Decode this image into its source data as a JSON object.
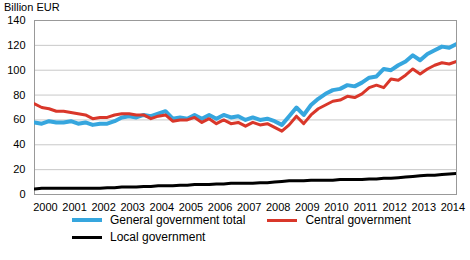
{
  "chart_data": {
    "type": "line",
    "y_label": "Billion EUR",
    "x": [
      2000,
      2000.25,
      2000.5,
      2000.75,
      2001,
      2001.25,
      2001.5,
      2001.75,
      2002,
      2002.25,
      2002.5,
      2002.75,
      2003,
      2003.25,
      2003.5,
      2003.75,
      2004,
      2004.25,
      2004.5,
      2004.75,
      2005,
      2005.25,
      2005.5,
      2005.75,
      2006,
      2006.25,
      2006.5,
      2006.75,
      2007,
      2007.25,
      2007.5,
      2007.75,
      2008,
      2008.25,
      2008.5,
      2008.75,
      2009,
      2009.25,
      2009.5,
      2009.75,
      2010,
      2010.25,
      2010.5,
      2010.75,
      2011,
      2011.25,
      2011.5,
      2011.75,
      2012,
      2012.25,
      2012.5,
      2012.75,
      2013,
      2013.25,
      2013.5,
      2013.75,
      2014,
      2014.25,
      2014.5
    ],
    "series": [
      {
        "name": "General government total",
        "color": "#36a6de",
        "values": [
          58,
          57,
          59,
          58,
          58,
          59,
          57,
          58,
          56,
          57,
          57,
          59,
          62,
          63,
          62,
          64,
          63,
          65,
          67,
          61,
          62,
          61,
          64,
          61,
          64,
          61,
          64,
          62,
          63,
          60,
          62,
          60,
          61,
          59,
          56,
          63,
          70,
          64,
          72,
          77,
          81,
          84,
          85,
          88,
          87,
          90,
          94,
          95,
          101,
          100,
          104,
          107,
          112,
          108,
          113,
          116,
          119,
          118,
          121
        ]
      },
      {
        "name": "Central government",
        "color": "#d9372a",
        "values": [
          73,
          70,
          69,
          67,
          67,
          66,
          65,
          64,
          61,
          62,
          62,
          64,
          65,
          65,
          64,
          64,
          61,
          63,
          64,
          59,
          60,
          60,
          62,
          58,
          61,
          57,
          60,
          57,
          58,
          55,
          58,
          56,
          57,
          54,
          51,
          56,
          63,
          57,
          64,
          69,
          72,
          75,
          76,
          79,
          78,
          81,
          86,
          88,
          86,
          93,
          92,
          96,
          101,
          97,
          101,
          104,
          106,
          105,
          107
        ]
      },
      {
        "name": "Local government",
        "color": "#000000",
        "values": [
          4.5,
          5,
          5,
          5,
          5,
          5,
          5,
          5,
          5,
          5,
          5.5,
          5.5,
          6,
          6,
          6,
          6.5,
          6.5,
          7,
          7,
          7,
          7.5,
          7.5,
          8,
          8,
          8,
          8.5,
          8.5,
          9,
          9,
          9,
          9,
          9.5,
          9.5,
          10,
          10.5,
          11,
          11,
          11,
          11.5,
          11.5,
          11.5,
          11.5,
          12,
          12,
          12,
          12,
          12.5,
          12.5,
          13,
          13,
          13.5,
          14,
          14.5,
          15,
          15.5,
          15.5,
          16,
          16.5,
          17
        ]
      }
    ],
    "xlim": [
      2000,
      2014.5
    ],
    "xticks": [
      {
        "value": 2000.375,
        "label": "2000"
      },
      {
        "value": 2001.375,
        "label": "2001"
      },
      {
        "value": 2002.375,
        "label": "2002"
      },
      {
        "value": 2003.375,
        "label": "2003"
      },
      {
        "value": 2004.375,
        "label": "2004"
      },
      {
        "value": 2005.375,
        "label": "2005"
      },
      {
        "value": 2006.375,
        "label": "2006"
      },
      {
        "value": 2007.375,
        "label": "2007"
      },
      {
        "value": 2008.375,
        "label": "2008"
      },
      {
        "value": 2009.375,
        "label": "2009"
      },
      {
        "value": 2010.375,
        "label": "2010"
      },
      {
        "value": 2011.375,
        "label": "2011"
      },
      {
        "value": 2012.375,
        "label": "2012"
      },
      {
        "value": 2013.375,
        "label": "2013"
      },
      {
        "value": 2014.375,
        "label": "2014"
      }
    ],
    "ylim": [
      0,
      140
    ],
    "yticks": [
      0,
      20,
      40,
      60,
      80,
      100,
      120,
      140
    ],
    "grid": true
  }
}
